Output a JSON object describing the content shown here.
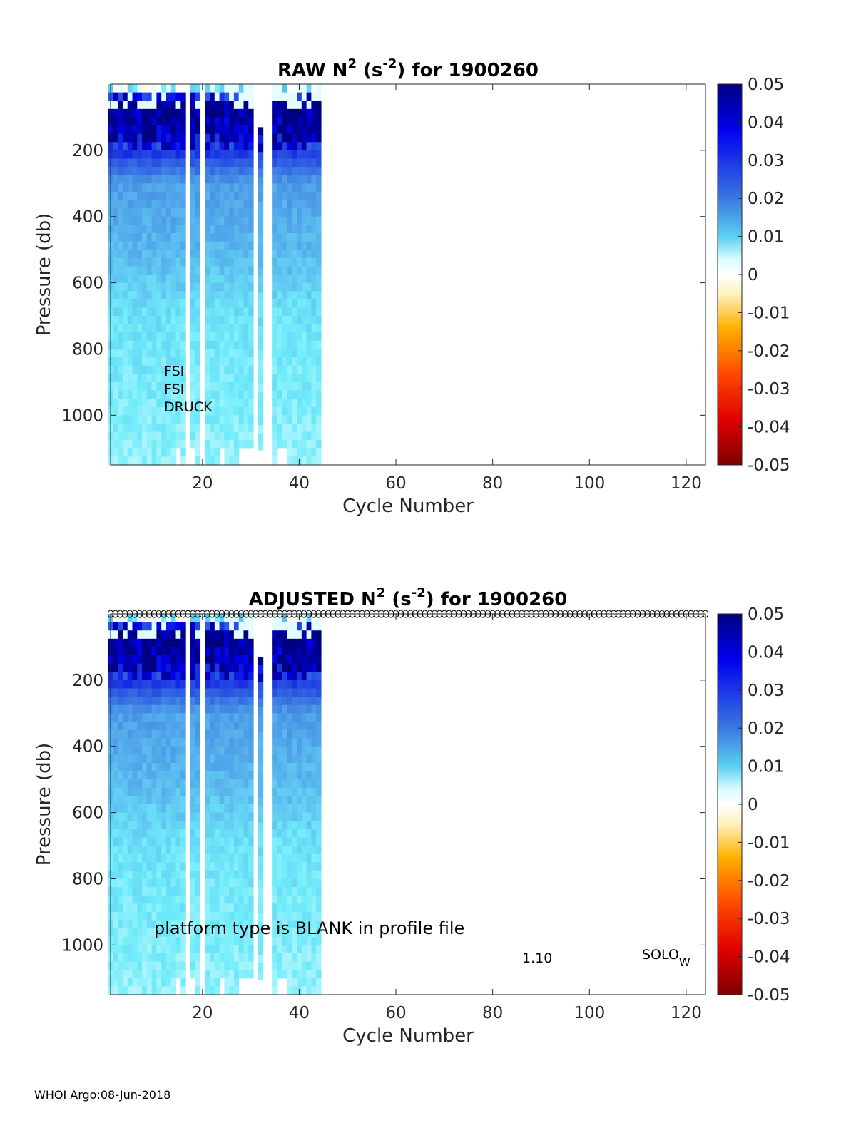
{
  "footer": "WHOI Argo:08-Jun-2018",
  "chart_data": [
    {
      "type": "heatmap",
      "title": {
        "main": "RAW N",
        "sup1": "2",
        "mid": " (s",
        "sup2": "-2",
        "end": ") for 1900260"
      },
      "xlabel": "Cycle Number",
      "ylabel": "Pressure (db)",
      "xlim": [
        1,
        124
      ],
      "ylim": [
        1150,
        0
      ],
      "xticks": [
        20,
        40,
        60,
        80,
        100,
        120
      ],
      "yticks": [
        200,
        400,
        600,
        800,
        1000
      ],
      "colorbar": {
        "range": [
          -0.05,
          0.05
        ],
        "ticks": [
          "0.05",
          "0.04",
          "0.03",
          "0.02",
          "0.01",
          "0",
          "-0.01",
          "-0.02",
          "-0.03",
          "-0.04",
          "-0.05"
        ],
        "colormap": "jet-white-centered"
      },
      "cycles_with_data": [
        1,
        2,
        3,
        4,
        5,
        6,
        7,
        8,
        9,
        10,
        11,
        12,
        13,
        14,
        15,
        16,
        18,
        19,
        21,
        22,
        23,
        24,
        25,
        26,
        27,
        28,
        29,
        30,
        32,
        35,
        36,
        37,
        38,
        39,
        40,
        41,
        42,
        43,
        44
      ],
      "profile_shapes": [
        {
          "depth_db": 0,
          "value": -0.002
        },
        {
          "depth_db": 50,
          "value": 0.05
        },
        {
          "depth_db": 150,
          "value": 0.045
        },
        {
          "depth_db": 200,
          "value": 0.034
        },
        {
          "depth_db": 300,
          "value": 0.019
        },
        {
          "depth_db": 500,
          "value": 0.016
        },
        {
          "depth_db": 700,
          "value": 0.011
        },
        {
          "depth_db": 1150,
          "value": 0.008
        }
      ],
      "annotations": [
        "FSI",
        "FSI",
        "DRUCK"
      ]
    },
    {
      "type": "heatmap",
      "title": {
        "main": "ADJUSTED N",
        "sup1": "2",
        "mid": " (s",
        "sup2": "-2",
        "end": ") for 1900260"
      },
      "xlabel": "Cycle Number",
      "ylabel": "Pressure (db)",
      "xlim": [
        1,
        124
      ],
      "ylim": [
        1150,
        0
      ],
      "xticks": [
        20,
        40,
        60,
        80,
        100,
        120
      ],
      "yticks": [
        200,
        400,
        600,
        800,
        1000
      ],
      "colorbar": {
        "range": [
          -0.05,
          0.05
        ],
        "ticks": [
          "0.05",
          "0.04",
          "0.03",
          "0.02",
          "0.01",
          "0",
          "-0.01",
          "-0.02",
          "-0.03",
          "-0.04",
          "-0.05"
        ],
        "colormap": "jet-white-centered"
      },
      "top_markers": {
        "symbol": "o",
        "cycles_from": 1,
        "cycles_to": 124
      },
      "annotations": [
        "platform type is BLANK in profile file",
        "1.10",
        "SOLO",
        "W"
      ]
    }
  ]
}
